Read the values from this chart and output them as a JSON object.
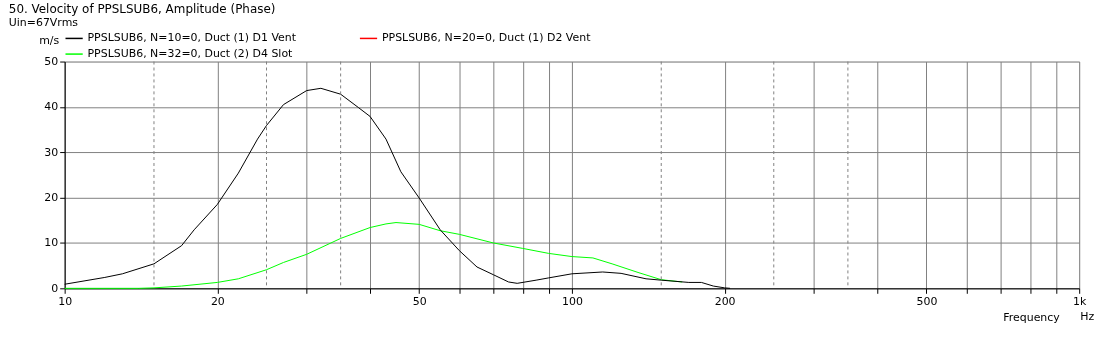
{
  "chart_data": {
    "type": "line",
    "title": "50. Velocity of PPSLSUB6, Amplitude (Phase)",
    "subtitle": "Uin=67Vrms",
    "xlabel": "Frequency",
    "ylabel": "m/s",
    "annotations": [
      "Hz"
    ],
    "log": "x",
    "grid": true,
    "legend": "top",
    "xlim": [
      10,
      1000
    ],
    "xticks": [
      10,
      20,
      {
        "value": 30,
        "label": null
      },
      {
        "value": 40,
        "label": null
      },
      50,
      {
        "value": 60,
        "label": null
      },
      {
        "value": 70,
        "label": null
      },
      {
        "value": 80,
        "label": null
      },
      {
        "value": 90,
        "label": null
      },
      100,
      200,
      {
        "value": 300,
        "label": null
      },
      {
        "value": 400,
        "label": null
      },
      500,
      {
        "value": 600,
        "label": null
      },
      {
        "value": 700,
        "label": null
      },
      {
        "value": 800,
        "label": null
      },
      {
        "value": 900,
        "label": null
      },
      {
        "value": 1000,
        "label": "1k"
      }
    ],
    "ylim": [
      0,
      50
    ],
    "yticks": [
      0,
      10,
      20,
      30,
      40,
      50
    ],
    "ref_lines": [
      {
        "axis": "x",
        "value": 15,
        "line_style": "dashed",
        "color": "#808080"
      },
      {
        "axis": "x",
        "value": 25,
        "line_style": "dashed",
        "color": "#808080"
      },
      {
        "axis": "x",
        "value": 35,
        "line_style": "dashed",
        "color": "#808080"
      },
      {
        "axis": "x",
        "value": 150,
        "line_style": "dashed",
        "color": "#808080"
      },
      {
        "axis": "x",
        "value": 250,
        "line_style": "dashed",
        "color": "#808080"
      },
      {
        "axis": "x",
        "value": 350,
        "line_style": "dashed",
        "color": "#808080"
      }
    ],
    "series": [
      {
        "name": "PPSLSUB6, N=10=0, Duct (1) D1 Vent",
        "color": "#000000",
        "x": [
          10,
          12,
          13,
          15,
          17,
          18,
          20,
          22,
          24,
          25,
          27,
          30,
          32,
          35,
          38,
          40,
          43,
          46,
          50,
          55,
          60,
          65,
          70,
          75,
          78,
          85,
          90,
          100,
          115,
          125,
          140,
          150,
          170,
          180,
          190,
          200,
          205
        ],
        "values": [
          0.9,
          2.4,
          3.2,
          5.4,
          9.4,
          12.9,
          18.5,
          25.4,
          32.9,
          35.9,
          40.5,
          43.6,
          44.1,
          42.8,
          39.8,
          37.9,
          32.9,
          25.7,
          19.9,
          12.9,
          8.3,
          4.7,
          3.0,
          1.4,
          1.1,
          1.8,
          2.3,
          3.2,
          3.6,
          3.3,
          2.1,
          1.8,
          1.3,
          1.3,
          0.5,
          0.1,
          0
        ]
      },
      {
        "name": "PPSLSUB6, N=20=0, Duct (1) D2 Vent",
        "color": "#ff0000"
      },
      {
        "name": "PPSLSUB6, N=32=0, Duct (2) D4 Slot",
        "color": "#00ff00",
        "x": [
          10,
          14,
          15,
          17,
          20,
          22,
          25,
          27,
          30,
          35,
          40,
          43,
          45,
          50,
          55,
          60,
          70,
          80,
          90,
          100,
          110,
          120,
          135,
          150,
          165
        ],
        "values": [
          0,
          0,
          0.1,
          0.5,
          1.3,
          2.1,
          4.1,
          5.7,
          7.5,
          11.0,
          13.4,
          14.2,
          14.5,
          14.1,
          12.7,
          11.9,
          10.0,
          8.8,
          7.7,
          7.0,
          6.7,
          5.4,
          3.5,
          1.9,
          1.4
        ]
      }
    ]
  }
}
